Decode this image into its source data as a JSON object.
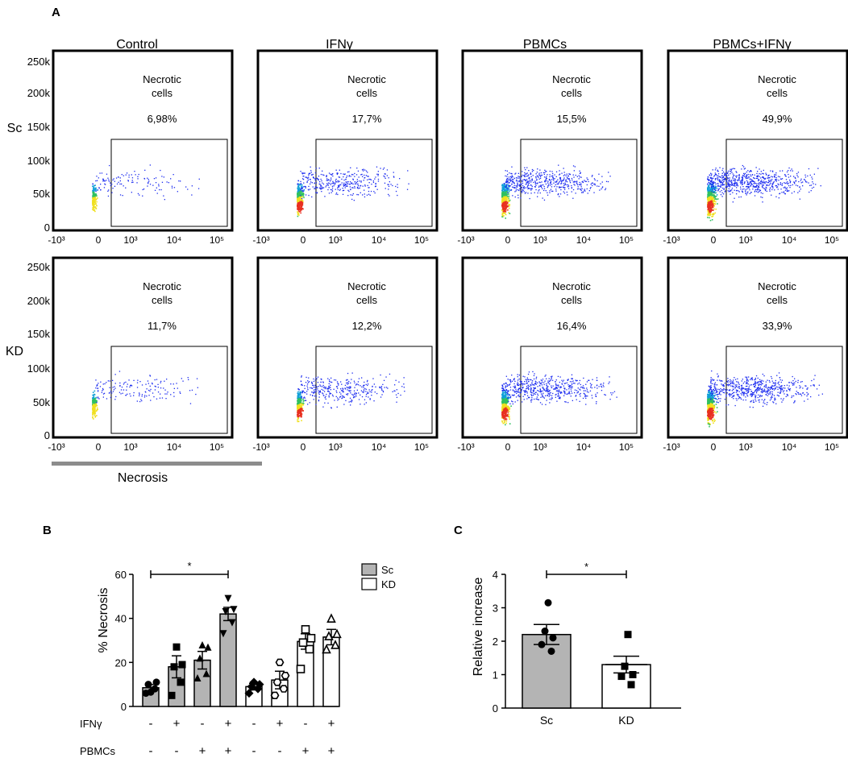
{
  "panel_labels": {
    "a": "A",
    "b": "B",
    "c": "C"
  },
  "colors": {
    "dot_blue": "#1c2cf0",
    "dense_cyan": "#10a0d8",
    "dense_green": "#30c060",
    "dense_yellow": "#f0e020",
    "dense_red": "#e83020",
    "bar_gray": "#b4b4b4",
    "bar_white": "#ffffff",
    "axis": "#000000",
    "necrosis_bar": "#8c8c8c"
  },
  "panel_a": {
    "conditions": [
      "Control",
      "IFNγ",
      "PBMCs",
      "PBMCs+IFNγ"
    ],
    "rows": [
      "Sc",
      "KD"
    ],
    "gate_label_line1": "Necrotic",
    "gate_label_line2": "cells",
    "y_ticks": [
      "250k",
      "200k",
      "150k",
      "100k",
      "50k",
      "0"
    ],
    "x_ticks": [
      "-10³",
      "0",
      "10³",
      "10⁴",
      "10⁵"
    ],
    "x_axis_title": "Necrosis",
    "percentages": [
      [
        "6,98%",
        "17,7%",
        "15,5%",
        "49,9%"
      ],
      [
        "11,7%",
        "12,2%",
        "16,4%",
        "33,9%"
      ]
    ]
  },
  "chart_data": [
    {
      "type": "flow-cytometry-dot-plot",
      "title": "Panel A",
      "xlabel": "Necrosis",
      "ylabel": "",
      "ylim": [
        0,
        262144
      ],
      "rows": [
        "Sc",
        "KD"
      ],
      "columns": [
        "Control",
        "IFNγ",
        "PBMCs",
        "PBMCs+IFNγ"
      ],
      "gate": "Necrotic cells",
      "gate_percent": [
        [
          6.98,
          17.7,
          15.5,
          49.9
        ],
        [
          11.7,
          12.2,
          16.4,
          33.9
        ]
      ]
    },
    {
      "type": "bar",
      "title": "Panel B",
      "ylabel": "% Necrosis",
      "ylim": [
        0,
        60
      ],
      "yticks": [
        0,
        20,
        40,
        60
      ],
      "legend": [
        {
          "name": "Sc",
          "color": "#b4b4b4"
        },
        {
          "name": "KD",
          "color": "#ffffff"
        }
      ],
      "legend_position": "top-right",
      "row_labels": [
        "IFNγ",
        "PBMCs"
      ],
      "ifn": [
        "-",
        "+",
        "-",
        "+",
        "-",
        "+",
        "-",
        "+"
      ],
      "pbmc": [
        "-",
        "-",
        "+",
        "+",
        "-",
        "-",
        "+",
        "+"
      ],
      "group": [
        "Sc",
        "Sc",
        "Sc",
        "Sc",
        "KD",
        "KD",
        "KD",
        "KD"
      ],
      "values": [
        8.5,
        18,
        21,
        42,
        9,
        12,
        29.5,
        31.5
      ],
      "sem": [
        1.5,
        5,
        4,
        3,
        1.5,
        4,
        3.5,
        3.5
      ],
      "points": [
        [
          6,
          8,
          10,
          11,
          6.5
        ],
        [
          5,
          11,
          18,
          19,
          27
        ],
        [
          13,
          15,
          22,
          27,
          28
        ],
        [
          33,
          38,
          43,
          44,
          49
        ],
        [
          6,
          8,
          9,
          10,
          11
        ],
        [
          5,
          8,
          11,
          14,
          20
        ],
        [
          17,
          26,
          29,
          31,
          35
        ],
        [
          26,
          28,
          32,
          33,
          40
        ]
      ],
      "markers": [
        "circle",
        "square",
        "triangle",
        "triangle-down",
        "diamond",
        "hexagon-open",
        "square-open",
        "triangle-open"
      ],
      "significance": {
        "from": 0,
        "to": 3,
        "label": "*"
      }
    },
    {
      "type": "bar",
      "title": "Panel C",
      "ylabel": "Relative increase",
      "ylim": [
        0,
        4
      ],
      "yticks": [
        0,
        1,
        2,
        3,
        4
      ],
      "categories": [
        "Sc",
        "KD"
      ],
      "values": [
        2.2,
        1.3
      ],
      "sem": [
        0.3,
        0.25
      ],
      "points": [
        [
          1.7,
          1.9,
          2.1,
          2.3,
          3.15
        ],
        [
          0.7,
          0.95,
          1.0,
          1.25,
          2.2
        ]
      ],
      "markers": [
        "circle",
        "square"
      ],
      "significance": {
        "from": 0,
        "to": 1,
        "label": "*"
      }
    }
  ]
}
